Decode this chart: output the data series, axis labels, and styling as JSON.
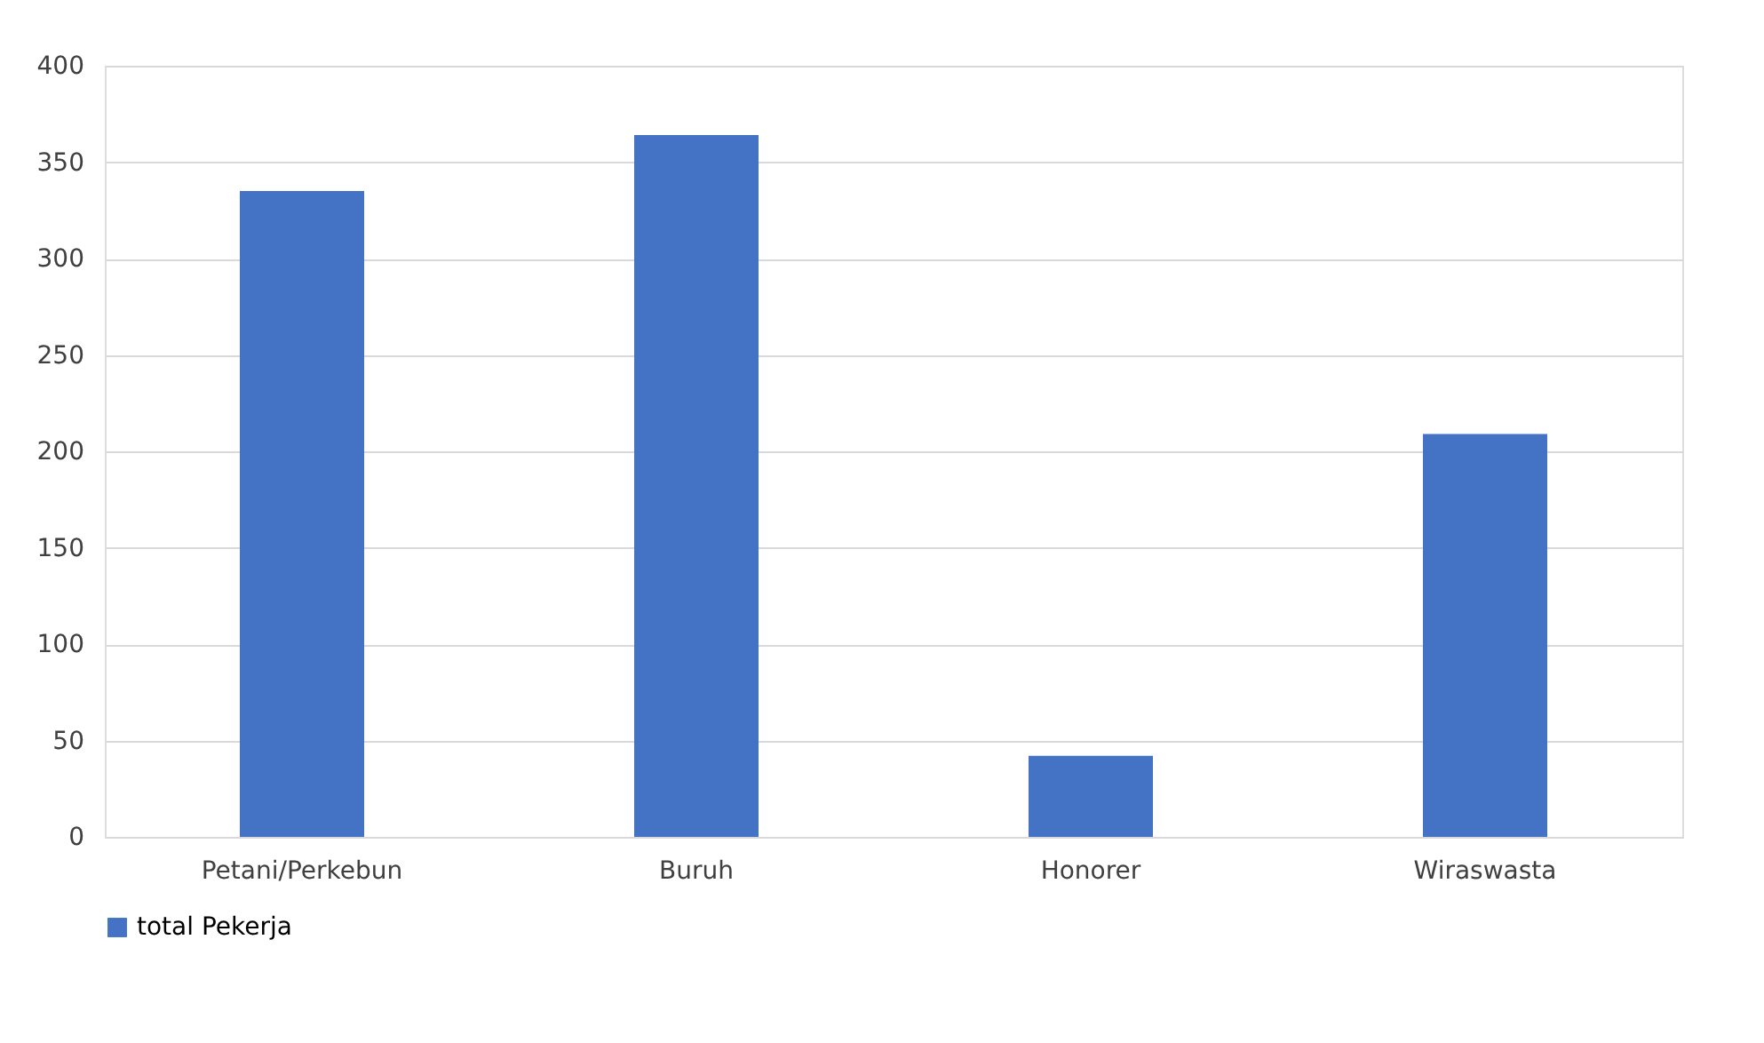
{
  "chart_data": {
    "type": "bar",
    "categories": [
      "Petani/Perkebun",
      "Buruh",
      "Honorer",
      "Wiraswasta"
    ],
    "series": [
      {
        "name": "total Pekerja",
        "color": "#4472c4",
        "values": [
          335,
          364,
          42,
          209
        ]
      }
    ],
    "ylim": [
      0,
      400
    ],
    "yticks": [
      0,
      50,
      100,
      150,
      200,
      250,
      300,
      350,
      400
    ],
    "grid": "y",
    "legend": "bottom"
  }
}
